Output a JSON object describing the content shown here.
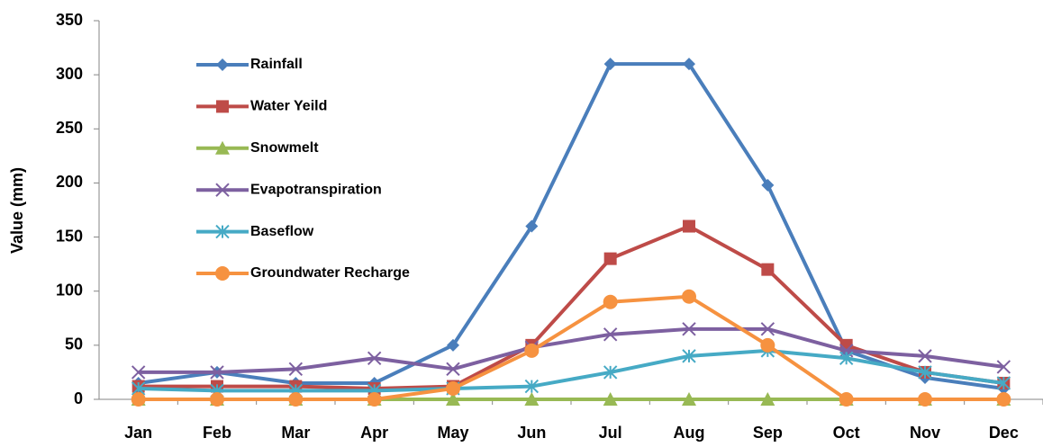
{
  "chart_data": {
    "type": "line",
    "y_label": "Value (mm)",
    "categories": [
      "Jan",
      "Feb",
      "Mar",
      "Apr",
      "May",
      "Jun",
      "Jul",
      "Aug",
      "Sep",
      "Oct",
      "Nov",
      "Dec"
    ],
    "series": [
      {
        "name": "Rainfall",
        "color": "#4a7ebb",
        "marker": "diamond",
        "values": [
          15,
          25,
          15,
          15,
          50,
          160,
          310,
          310,
          198,
          45,
          20,
          10
        ]
      },
      {
        "name": "Water Yeild",
        "color": "#be4b48",
        "marker": "square",
        "values": [
          12,
          12,
          12,
          10,
          12,
          50,
          130,
          160,
          120,
          50,
          25,
          15
        ]
      },
      {
        "name": "Snowmelt",
        "color": "#98b954",
        "marker": "triangle",
        "values": [
          0,
          0,
          0,
          0,
          0,
          0,
          0,
          0,
          0,
          0,
          0,
          0
        ]
      },
      {
        "name": "Evapotranspiration",
        "color": "#7d60a0",
        "marker": "x",
        "values": [
          25,
          25,
          28,
          38,
          28,
          48,
          60,
          65,
          65,
          45,
          40,
          30
        ]
      },
      {
        "name": "Baseflow",
        "color": "#46aac5",
        "marker": "asterisk",
        "values": [
          10,
          8,
          8,
          8,
          10,
          12,
          25,
          40,
          45,
          38,
          25,
          15
        ]
      },
      {
        "name": "Groundwater Recharge",
        "color": "#f69240",
        "marker": "circle",
        "values": [
          0,
          0,
          0,
          0,
          10,
          45,
          90,
          95,
          50,
          0,
          0,
          0
        ]
      }
    ],
    "ylim": [
      0,
      350
    ],
    "yticks": [
      0,
      50,
      100,
      150,
      200,
      250,
      300,
      350
    ],
    "grid": false,
    "legend": "upper-left"
  }
}
